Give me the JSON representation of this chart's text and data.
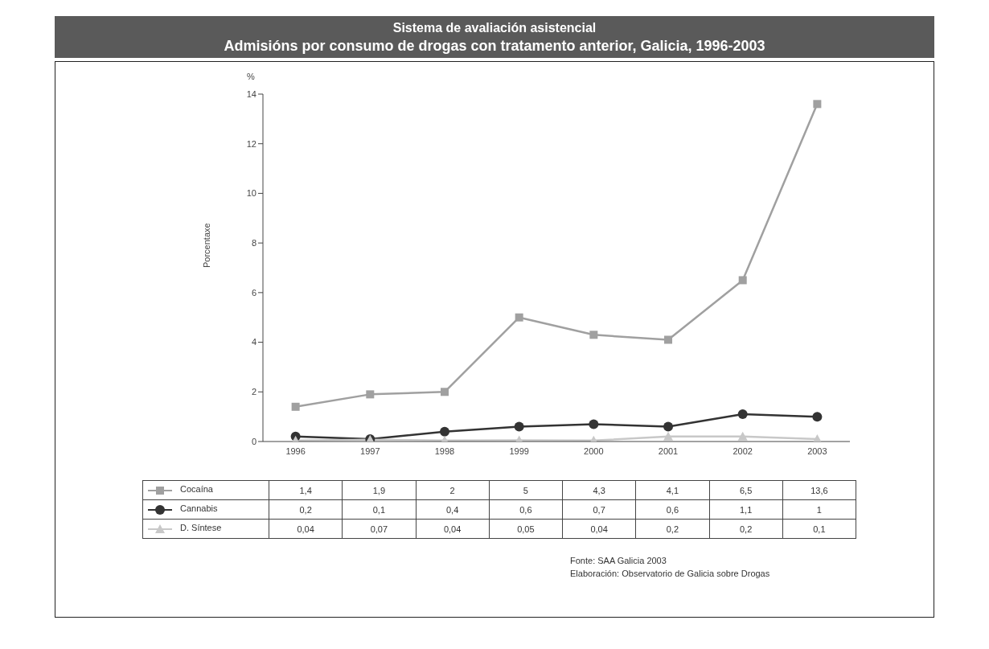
{
  "chart_data": {
    "type": "line",
    "title": "Sistema de avaliación asistencial",
    "subtitle": "Admisións por consumo de drogas con tratamento anterior, Galicia, 1996-2003",
    "ylabel": "Porcentaxe",
    "categories": [
      "1996",
      "1997",
      "1998",
      "1999",
      "2000",
      "2001",
      "2002",
      "2003"
    ],
    "series": [
      {
        "name": "Cocaína",
        "color": "#a0a0a0",
        "marker": "square",
        "values": [
          1.4,
          1.9,
          2,
          5,
          4.3,
          4.1,
          6.5,
          13.6
        ],
        "value_labels": [
          "1,4",
          "1,9",
          "2",
          "5",
          "4,3",
          "4,1",
          "6,5",
          "13,6"
        ]
      },
      {
        "name": "Cannabis",
        "color": "#333333",
        "marker": "circle",
        "values": [
          0.2,
          0.1,
          0.4,
          0.6,
          0.7,
          0.6,
          1.1,
          1
        ],
        "value_labels": [
          "0,2",
          "0,1",
          "0,4",
          "0,6",
          "0,7",
          "0,6",
          "1,1",
          "1"
        ]
      },
      {
        "name": "D. Síntese",
        "color": "#c8c8c8",
        "marker": "triangle",
        "values": [
          0.04,
          0.07,
          0.04,
          0.05,
          0.04,
          0.2,
          0.2,
          0.1
        ],
        "value_labels": [
          "0,04",
          "0,07",
          "0,04",
          "0,05",
          "0,04",
          "0,2",
          "0,2",
          "0,1"
        ]
      }
    ],
    "ylim": [
      0,
      14
    ],
    "yticks": [
      0,
      2,
      4,
      6,
      8,
      10,
      12,
      14
    ],
    "grid": false,
    "legend": "bottom",
    "annotations": [
      "%",
      "Fonte: SAA Galicia 2003",
      "Elaboración: Observatorio de Galicia sobre Drogas"
    ]
  }
}
